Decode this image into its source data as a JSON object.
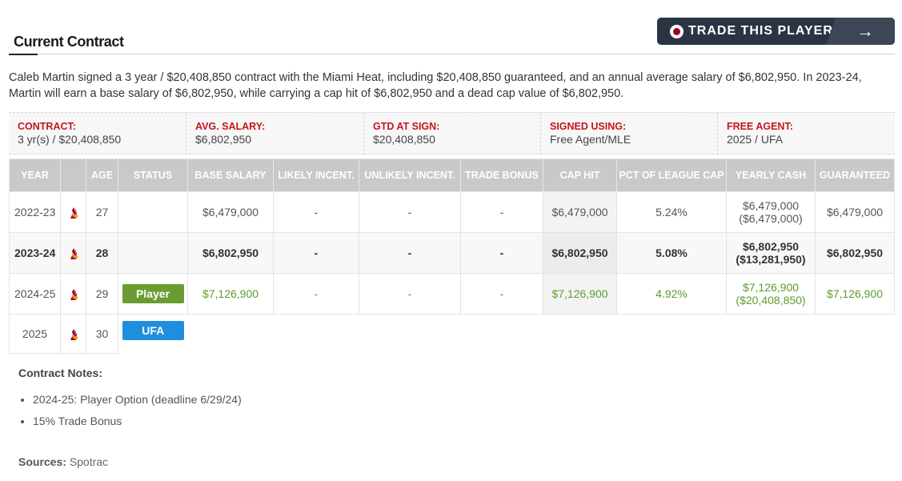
{
  "section": {
    "title": "Current Contract"
  },
  "trade_button": {
    "label": "TRADE THIS PLAYER",
    "arrow": "→",
    "icon": "heat-logo-icon"
  },
  "summary": "Caleb Martin signed a 3 year / $20,408,850 contract with the Miami Heat, including $20,408,850 guaranteed, and an annual average salary of $6,802,950. In 2023-24, Martin will earn a base salary of $6,802,950, while carrying a cap hit of $6,802,950 and a dead cap value of $6,802,950.",
  "info": [
    {
      "label": "CONTRACT:",
      "value": "3 yr(s) / $20,408,850"
    },
    {
      "label": "AVG. SALARY:",
      "value": "$6,802,950"
    },
    {
      "label": "GTD AT SIGN:",
      "value": "$20,408,850"
    },
    {
      "label": "SIGNED USING:",
      "value": "Free Agent/MLE"
    },
    {
      "label": "FREE AGENT:",
      "value": "2025 / UFA"
    }
  ],
  "table": {
    "headers": [
      "YEAR",
      "",
      "AGE",
      "STATUS",
      "BASE SALARY",
      "LIKELY INCENT.",
      "UNLIKELY INCENT.",
      "TRADE BONUS",
      "CAP HIT",
      "PCT OF LEAGUE CAP",
      "YEARLY CASH",
      "GUARANTEED"
    ],
    "rows": [
      {
        "year": "2022-23",
        "team_icon": "heat-logo-icon",
        "age": "27",
        "status": "",
        "base_salary": "$6,479,000",
        "likely": "-",
        "unlikely": "-",
        "trade_bonus": "-",
        "cap_hit": "$6,479,000",
        "pct": "5.24%",
        "cash": "$6,479,000",
        "cash_total": "($6,479,000)",
        "guaranteed": "$6,479,000"
      },
      {
        "year": "2023-24",
        "team_icon": "heat-logo-icon",
        "age": "28",
        "status": "",
        "base_salary": "$6,802,950",
        "likely": "-",
        "unlikely": "-",
        "trade_bonus": "-",
        "cap_hit": "$6,802,950",
        "pct": "5.08%",
        "cash": "$6,802,950",
        "cash_total": "($13,281,950)",
        "guaranteed": "$6,802,950"
      },
      {
        "year": "2024-25",
        "team_icon": "heat-logo-icon",
        "age": "29",
        "status": "Player",
        "base_salary": "$7,126,900",
        "likely": "-",
        "unlikely": "-",
        "trade_bonus": "-",
        "cap_hit": "$7,126,900",
        "pct": "4.92%",
        "cash": "$7,126,900",
        "cash_total": "($20,408,850)",
        "guaranteed": "$7,126,900"
      },
      {
        "year": "2025",
        "team_icon": "heat-logo-icon",
        "age": "30",
        "status": "UFA"
      }
    ]
  },
  "notes": {
    "title": "Contract Notes:",
    "items": [
      "2024-25: Player Option (deadline 6/29/24)",
      "15% Trade Bonus"
    ]
  },
  "sources": {
    "label": "Sources:",
    "value": "Spotrac"
  },
  "colors": {
    "accent_red": "#c4161c",
    "button_bg": "#2c3444",
    "player_badge": "#6a9c33",
    "ufa_badge": "#1f8fdd",
    "future_green": "#5f9b2e",
    "header_gray": "#c9c9c9"
  }
}
